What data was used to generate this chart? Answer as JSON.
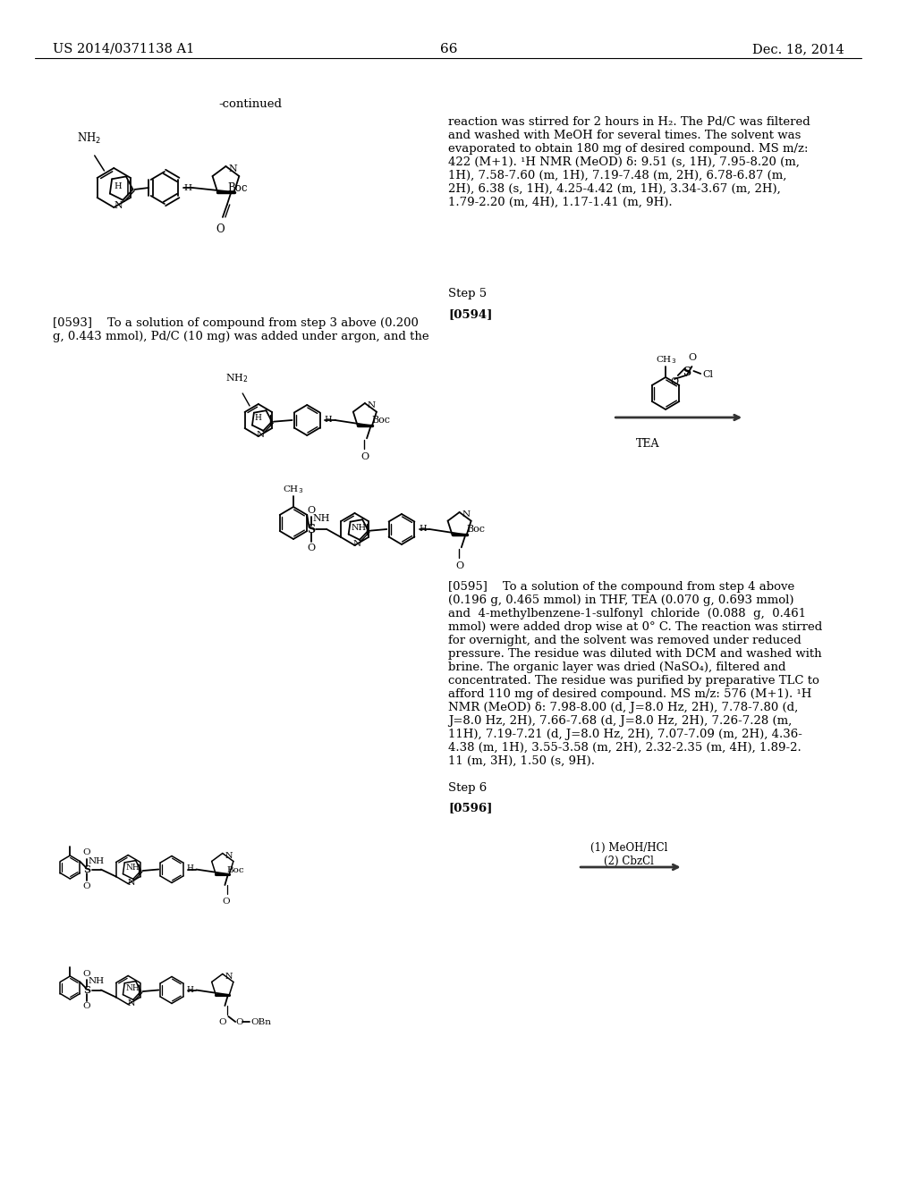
{
  "page_number": "66",
  "header_left": "US 2014/0371138 A1",
  "header_right": "Dec. 18, 2014",
  "background_color": "#ffffff",
  "continued_label": "-continued",
  "paragraph_593": "[0593]    To a solution of compound from step 3 above (0.200\ng, 0.443 mmol), Pd/C (10 mg) was added under argon, and the",
  "text_right_top": "reaction was stirred for 2 hours in H₂. The Pd/C was filtered\nand washed with MeOH for several times. The solvent was\nevaporated to obtain 180 mg of desired compound. MS m/z:\n422 (M+1). ¹H NMR (MeOD) δ: 9.51 (s, 1H), 7.95-8.20 (m,\n1H), 7.58-7.60 (m, 1H), 7.19-7.48 (m, 2H), 6.78-6.87 (m,\n2H), 6.38 (s, 1H), 4.25-4.42 (m, 1H), 3.34-3.67 (m, 2H),\n1.79-2.20 (m, 4H), 1.17-1.41 (m, 9H).",
  "step5_label": "Step 5",
  "paragraph_594": "[0594]",
  "tea_label": "TEA",
  "paragraph_595": "[0595]    To a solution of the compound from step 4 above\n(0.196 g, 0.465 mmol) in THF, TEA (0.070 g, 0.693 mmol)\nand  4-methylbenzene-1-sulfonyl  chloride  (0.088  g,  0.461\nmmol) were added drop wise at 0° C. The reaction was stirred\nfor overnight, and the solvent was removed under reduced\npressure. The residue was diluted with DCM and washed with\nbrine. The organic layer was dried (NaSO₄), filtered and\nconcentrated. The residue was purified by preparative TLC to\nafford 110 mg of desired compound. MS m/z: 576 (M+1). ¹H\nNMR (MeOD) δ: 7.98-8.00 (d, J=8.0 Hz, 2H), 7.78-7.80 (d,\nJ=8.0 Hz, 2H), 7.66-7.68 (d, J=8.0 Hz, 2H), 7.26-7.28 (m,\n11H), 7.19-7.21 (d, J=8.0 Hz, 2H), 7.07-7.09 (m, 2H), 4.36-\n4.38 (m, 1H), 3.55-3.58 (m, 2H), 2.32-2.35 (m, 4H), 1.89-2.\n11 (m, 3H), 1.50 (s, 9H).",
  "step6_label": "Step 6",
  "paragraph_596": "[0596]",
  "cond1": "(1) MeOH/HCl",
  "cond2": "(2) CbzCl"
}
